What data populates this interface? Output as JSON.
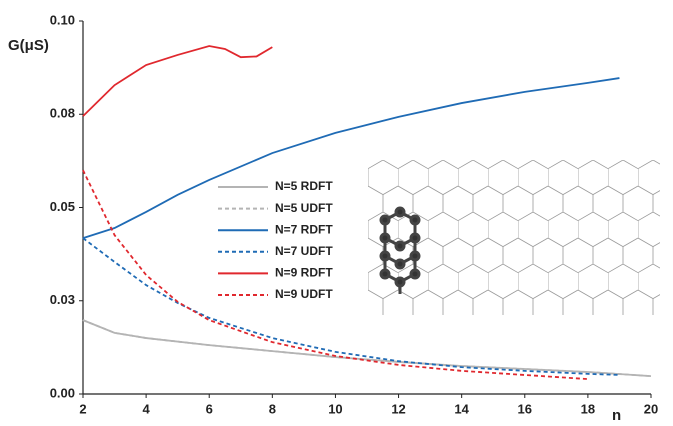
{
  "chart_data": {
    "type": "line",
    "y_label": "G(μS)",
    "x_label": "n",
    "xlim": [
      2,
      20
    ],
    "xticks": [
      2,
      4,
      6,
      8,
      10,
      12,
      14,
      16,
      18,
      20
    ],
    "ylim": [
      0,
      0.1
    ],
    "yticks": [
      {
        "value": 0,
        "label": "0.00"
      },
      {
        "value": 0.025,
        "label": "0.03"
      },
      0.05,
      {
        "value": 0.075,
        "label": "0.08"
      },
      {
        "value": 0.1,
        "label": "0.10"
      }
    ],
    "series": [
      {
        "name": "N=5 RDFT",
        "color": "#b4b4b4",
        "style": "solid",
        "x": [
          2,
          3,
          4,
          6,
          8,
          10,
          12,
          14,
          16,
          18,
          20
        ],
        "values": [
          0.0198,
          0.0164,
          0.015,
          0.0131,
          0.0115,
          0.0099,
          0.0086,
          0.0075,
          0.0067,
          0.0059,
          0.0048
        ]
      },
      {
        "name": "N=5 UDFT",
        "color": "#b4b4b4",
        "style": "dashed",
        "x": [
          2,
          3,
          4,
          6,
          8,
          10,
          12,
          14,
          16,
          18,
          20
        ],
        "values": [
          0.0198,
          0.0164,
          0.015,
          0.0131,
          0.0115,
          0.0099,
          0.0086,
          0.0075,
          0.0067,
          0.0059,
          0.0048
        ]
      },
      {
        "name": "N=7 RDFT",
        "color": "#1f6bb5",
        "style": "solid",
        "x": [
          2,
          3,
          4,
          5,
          6,
          8,
          10,
          12,
          14,
          16,
          18,
          19
        ],
        "values": [
          0.0418,
          0.0445,
          0.0488,
          0.0534,
          0.0574,
          0.0646,
          0.07,
          0.0743,
          0.078,
          0.081,
          0.0834,
          0.0847
        ]
      },
      {
        "name": "N=7 UDFT",
        "color": "#1f6bb5",
        "style": "dashed",
        "x": [
          2,
          3,
          4,
          5,
          6,
          8,
          10,
          12,
          14,
          16,
          18,
          19
        ],
        "values": [
          0.0418,
          0.0354,
          0.0292,
          0.0244,
          0.0204,
          0.015,
          0.0113,
          0.0088,
          0.0072,
          0.0062,
          0.0054,
          0.0051
        ]
      },
      {
        "name": "N=9 RDFT",
        "color": "#e0282e",
        "style": "solid",
        "x": [
          2,
          3,
          4,
          5,
          6,
          6.5,
          7,
          7.5,
          8
        ],
        "values": [
          0.0745,
          0.0828,
          0.0882,
          0.0909,
          0.0933,
          0.0925,
          0.0903,
          0.0905,
          0.093
        ]
      },
      {
        "name": "N=9 UDFT",
        "color": "#e0282e",
        "style": "dashed",
        "x": [
          2,
          3,
          4,
          5,
          6,
          8,
          10,
          12,
          14,
          16,
          18
        ],
        "values": [
          0.06,
          0.0426,
          0.0319,
          0.0247,
          0.0198,
          0.0139,
          0.0102,
          0.0078,
          0.0062,
          0.0051,
          0.004
        ]
      }
    ]
  }
}
